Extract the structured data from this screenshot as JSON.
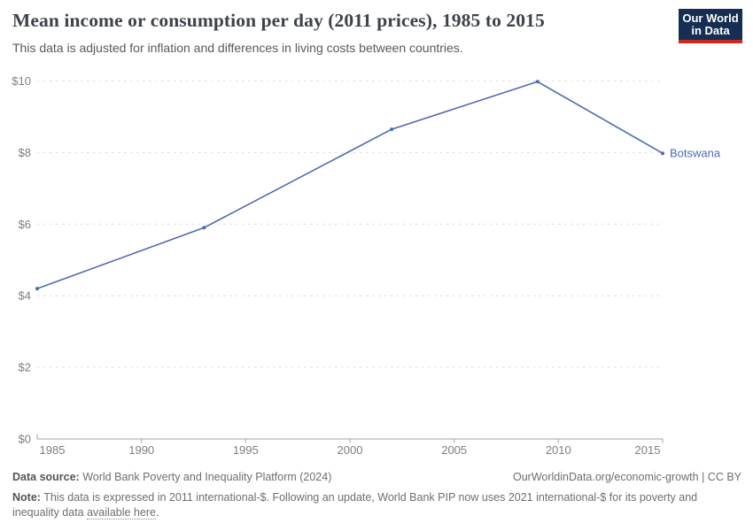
{
  "header": {
    "title": "Mean income or consumption per day (2011 prices), 1985 to 2015",
    "subtitle": "This data is adjusted for inflation and differences in living costs between countries."
  },
  "logo": {
    "line1": "Our World",
    "line2": "in Data",
    "background_color": "#152E51",
    "accent_color": "#CE2A1C"
  },
  "chart_data": {
    "type": "line",
    "title": "Mean income or consumption per day (2011 prices), 1985 to 2015",
    "xlabel": "",
    "ylabel": "",
    "xlim": [
      1985,
      2015
    ],
    "ylim": [
      0,
      10
    ],
    "grid": "horizontal-dashed",
    "legend": "label-at-line-end",
    "x_ticks": [
      {
        "value": 1985,
        "label": "1985"
      },
      {
        "value": 1990,
        "label": "1990"
      },
      {
        "value": 1995,
        "label": "1995"
      },
      {
        "value": 2000,
        "label": "2000"
      },
      {
        "value": 2005,
        "label": "2005"
      },
      {
        "value": 2010,
        "label": "2010"
      },
      {
        "value": 2015,
        "label": "2015"
      }
    ],
    "y_ticks": [
      {
        "value": 0,
        "label": "$0"
      },
      {
        "value": 2,
        "label": "$2"
      },
      {
        "value": 4,
        "label": "$4"
      },
      {
        "value": 6,
        "label": "$6"
      },
      {
        "value": 8,
        "label": "$8"
      },
      {
        "value": 10,
        "label": "$10"
      }
    ],
    "series": [
      {
        "name": "Botswana",
        "color": "#4C6BAE",
        "x": [
          1985,
          1993,
          2002,
          2009,
          2015
        ],
        "y": [
          4.2,
          5.9,
          8.65,
          9.98,
          7.98
        ]
      }
    ],
    "colors": {
      "grid": "#DCDCDC",
      "axis": "#A3A3A3",
      "tick_label": "#7E7E7E"
    }
  },
  "footer": {
    "datasource_label": "Data source:",
    "datasource_value": "World Bank Poverty and Inequality Platform (2024)",
    "url": "OurWorldinData.org/economic-growth",
    "divider": "|",
    "license": "CC BY",
    "note_label": "Note:",
    "note_body": "This data is expressed in 2011 international-$. Following an update, World Bank PIP now uses 2021 international-$ for its poverty and inequality data",
    "note_link": "available here",
    "note_period": "."
  }
}
